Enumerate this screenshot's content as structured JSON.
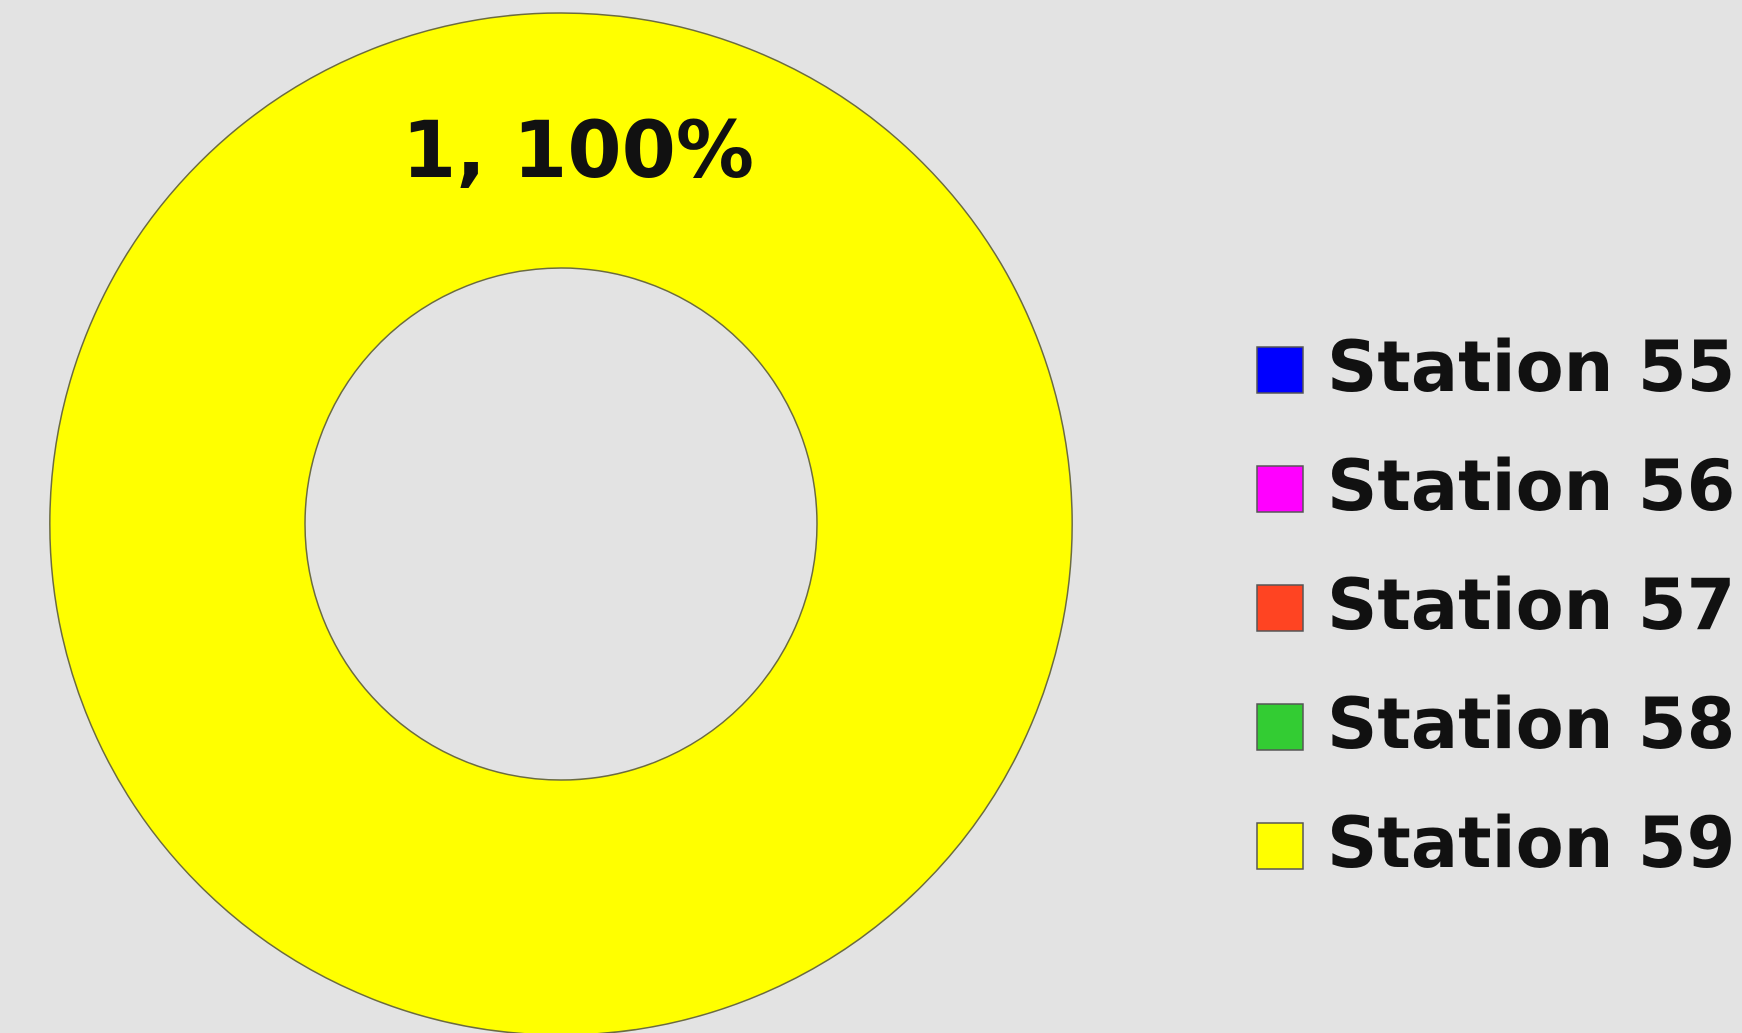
{
  "chart_data": {
    "type": "donut",
    "categories": [
      "Station 55",
      "Station 56",
      "Station 57",
      "Station 58",
      "Station 59"
    ],
    "values": [
      0,
      0,
      0,
      0,
      1
    ],
    "value_labels": [
      null,
      null,
      null,
      null,
      "1, 100%"
    ],
    "colors": [
      "#0000ff",
      "#ff00ff",
      "#ff4422",
      "#33cc33",
      "#ffff00"
    ],
    "legend": "right"
  }
}
